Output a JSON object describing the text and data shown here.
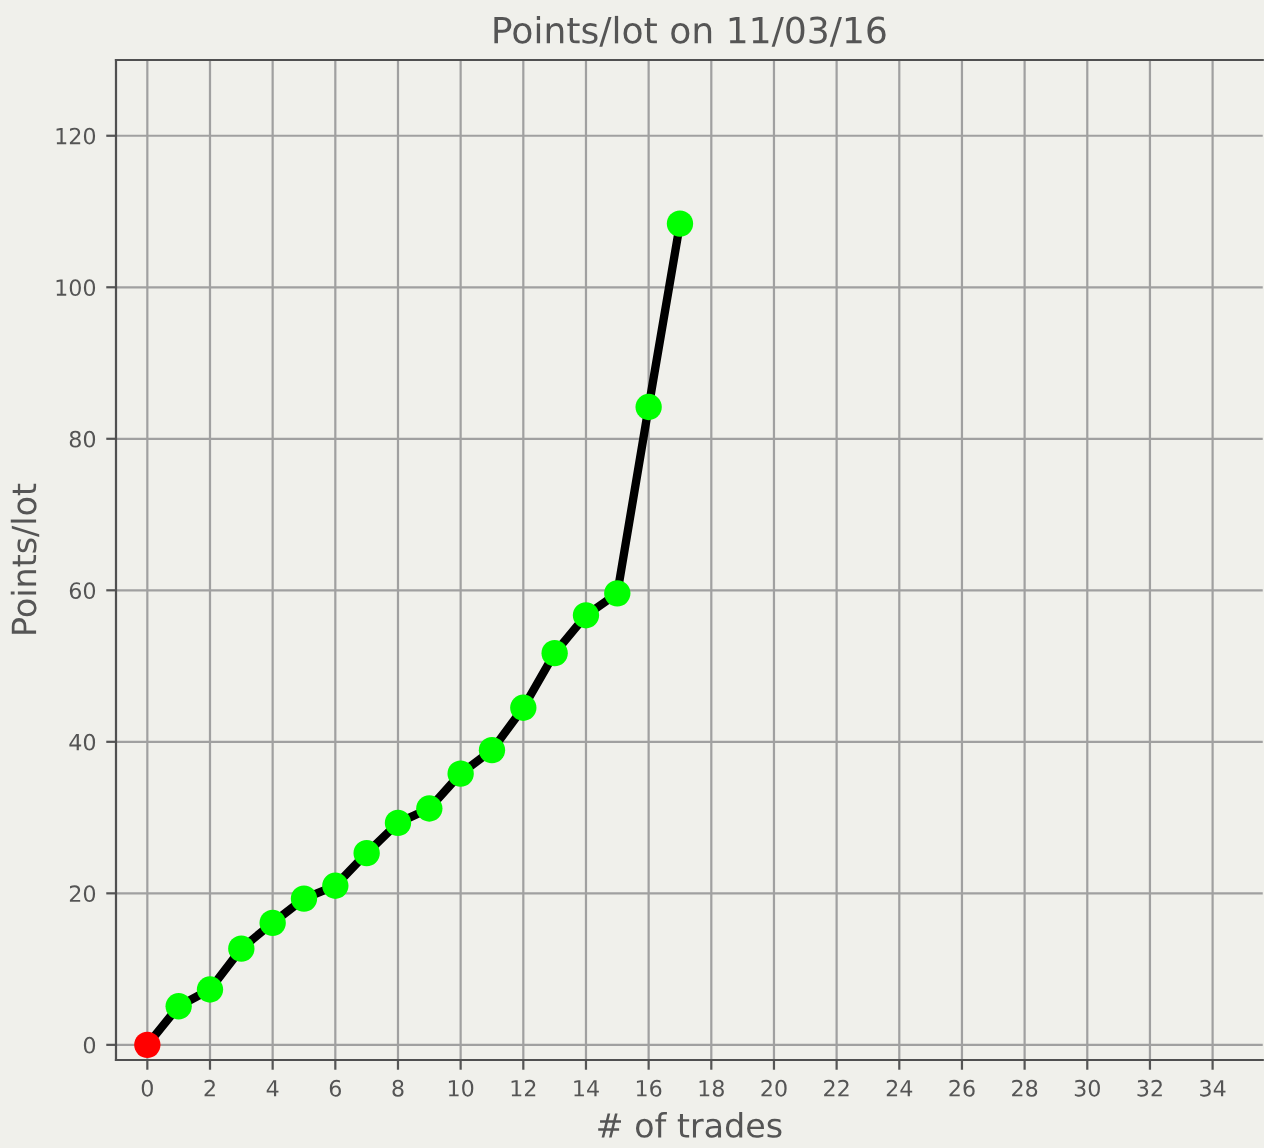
{
  "chart_data": {
    "type": "line",
    "title": "Points/lot on 11/03/16",
    "xlabel": "# of trades",
    "ylabel": "Points/lot",
    "x": [
      0,
      1,
      2,
      3,
      4,
      5,
      6,
      7,
      8,
      9,
      10,
      11,
      12,
      13,
      14,
      15,
      16,
      17
    ],
    "series": [
      {
        "color": "#000000",
        "colors": [
          "#ff0000",
          "#00ff00",
          "#00ff00",
          "#00ff00",
          "#00ff00",
          "#00ff00",
          "#00ff00",
          "#00ff00",
          "#00ff00",
          "#00ff00",
          "#00ff00",
          "#00ff00",
          "#00ff00",
          "#00ff00",
          "#00ff00",
          "#00ff00",
          "#00ff00",
          "#00ff00"
        ],
        "values": [
          0,
          5.1,
          7.3,
          12.7,
          16.1,
          19.3,
          21.0,
          25.3,
          29.3,
          31.2,
          35.8,
          38.9,
          44.5,
          51.7,
          56.7,
          59.6,
          84.2,
          108.4
        ]
      }
    ],
    "xlim": [
      -1,
      35.6
    ],
    "ylim": [
      -2,
      130
    ],
    "xticks": [
      0,
      2,
      4,
      6,
      8,
      10,
      12,
      14,
      16,
      18,
      20,
      22,
      24,
      26,
      28,
      30,
      32,
      34
    ],
    "yticks": [
      0,
      20,
      40,
      60,
      80,
      100,
      120
    ],
    "grid": true,
    "marker": "circle",
    "line_style": "solid"
  }
}
